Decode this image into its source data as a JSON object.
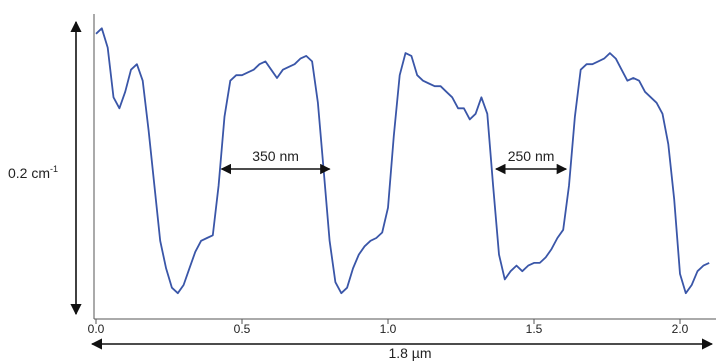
{
  "chart_data": {
    "type": "line",
    "title": "",
    "xlabel": "",
    "ylabel": "",
    "xlim": [
      0.0,
      2.1
    ],
    "ylim": [
      0.0,
      1.0
    ],
    "x_ticks": [
      {
        "value": 0.0,
        "label": "0.0"
      },
      {
        "value": 0.5,
        "label": "0.5"
      },
      {
        "value": 1.0,
        "label": "1.0"
      },
      {
        "value": 1.5,
        "label": "1.5"
      },
      {
        "value": 2.0,
        "label": "2.0"
      }
    ],
    "series": [
      {
        "color": "#3a56a8",
        "x": [
          0.0,
          0.02,
          0.04,
          0.06,
          0.08,
          0.1,
          0.12,
          0.14,
          0.16,
          0.18,
          0.2,
          0.22,
          0.24,
          0.26,
          0.28,
          0.3,
          0.32,
          0.34,
          0.36,
          0.38,
          0.4,
          0.42,
          0.44,
          0.46,
          0.48,
          0.5,
          0.52,
          0.54,
          0.56,
          0.58,
          0.6,
          0.62,
          0.64,
          0.66,
          0.68,
          0.7,
          0.72,
          0.74,
          0.76,
          0.78,
          0.8,
          0.82,
          0.84,
          0.86,
          0.88,
          0.9,
          0.92,
          0.94,
          0.96,
          0.98,
          1.0,
          1.02,
          1.04,
          1.06,
          1.08,
          1.1,
          1.12,
          1.14,
          1.16,
          1.18,
          1.2,
          1.22,
          1.24,
          1.26,
          1.28,
          1.3,
          1.32,
          1.34,
          1.36,
          1.38,
          1.4,
          1.42,
          1.44,
          1.46,
          1.48,
          1.5,
          1.52,
          1.54,
          1.56,
          1.58,
          1.6,
          1.62,
          1.64,
          1.66,
          1.68,
          1.7,
          1.72,
          1.74,
          1.76,
          1.78,
          1.8,
          1.82,
          1.84,
          1.86,
          1.88,
          1.9,
          1.92,
          1.94,
          1.96,
          1.98,
          2.0,
          2.02,
          2.04,
          2.06,
          2.08,
          2.1
        ],
        "values": [
          0.95,
          0.97,
          0.9,
          0.72,
          0.68,
          0.74,
          0.82,
          0.84,
          0.78,
          0.6,
          0.4,
          0.2,
          0.1,
          0.03,
          0.01,
          0.04,
          0.1,
          0.16,
          0.2,
          0.21,
          0.22,
          0.4,
          0.65,
          0.78,
          0.8,
          0.8,
          0.81,
          0.82,
          0.84,
          0.85,
          0.82,
          0.79,
          0.82,
          0.83,
          0.84,
          0.86,
          0.87,
          0.85,
          0.7,
          0.45,
          0.2,
          0.05,
          0.01,
          0.03,
          0.1,
          0.15,
          0.18,
          0.2,
          0.21,
          0.23,
          0.32,
          0.58,
          0.8,
          0.88,
          0.87,
          0.8,
          0.78,
          0.77,
          0.76,
          0.76,
          0.74,
          0.72,
          0.68,
          0.68,
          0.64,
          0.66,
          0.72,
          0.66,
          0.4,
          0.15,
          0.06,
          0.09,
          0.11,
          0.09,
          0.11,
          0.12,
          0.12,
          0.14,
          0.17,
          0.21,
          0.24,
          0.4,
          0.65,
          0.82,
          0.84,
          0.84,
          0.85,
          0.86,
          0.88,
          0.86,
          0.82,
          0.78,
          0.79,
          0.78,
          0.74,
          0.72,
          0.7,
          0.66,
          0.55,
          0.35,
          0.08,
          0.01,
          0.04,
          0.09,
          0.11,
          0.12
        ]
      }
    ],
    "annotations": [
      {
        "label": "350 nm",
        "x1": 0.43,
        "x2": 0.8,
        "y": 0.46
      },
      {
        "label": "250 nm",
        "x1": 1.37,
        "x2": 1.61,
        "y": 0.46
      }
    ],
    "vertical_scale_label": "0.2 cm",
    "vertical_scale_label_sup": "-1",
    "horizontal_scale_label": "1.8 µm",
    "grid": false,
    "legend": "none"
  }
}
